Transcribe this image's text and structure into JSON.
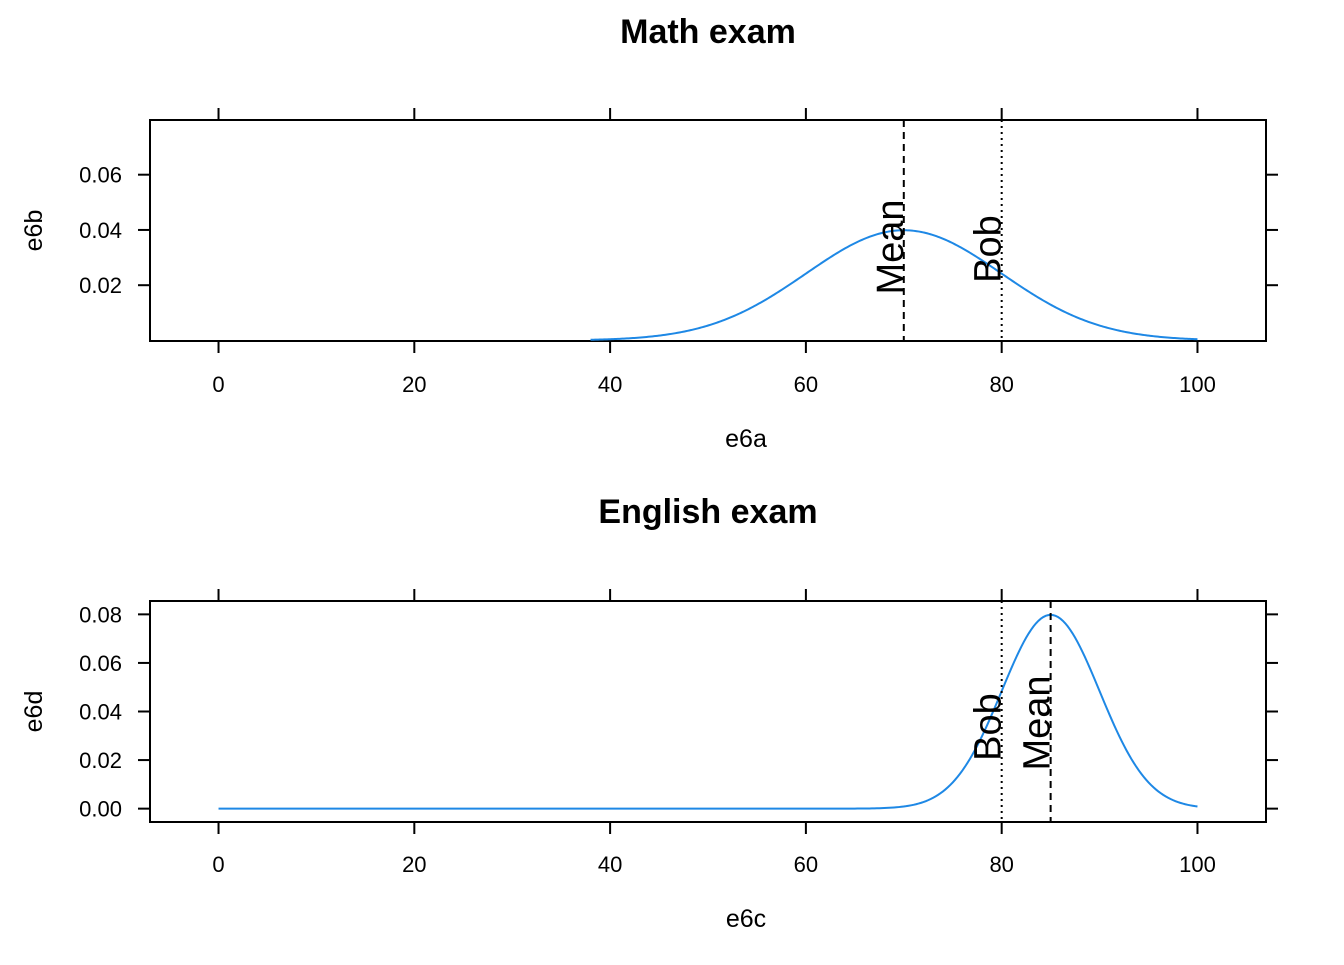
{
  "chart_data": [
    {
      "type": "line",
      "title": "Math exam",
      "xlabel": "e6a",
      "ylabel": "e6b",
      "xlim": [
        -7,
        107
      ],
      "ylim": [
        -0.0002,
        0.0798
      ],
      "xticks": [
        0,
        20,
        40,
        60,
        80,
        100
      ],
      "xtick_labels": [
        "0",
        "20",
        "40",
        "60",
        "80",
        "100"
      ],
      "yticks": [
        0.02,
        0.04,
        0.06
      ],
      "ytick_labels": [
        "0.02",
        "0.04",
        "0.06"
      ],
      "series": [
        {
          "color": "#1e88e5",
          "distribution": "normal",
          "mean": 70,
          "sd": 10,
          "x_range": [
            38,
            100
          ]
        }
      ],
      "annotations": [
        {
          "label": "Mean",
          "x": 70,
          "line_style": "dashed"
        },
        {
          "label": "Bob",
          "x": 80,
          "line_style": "dotted"
        }
      ],
      "grid": false
    },
    {
      "type": "line",
      "title": "English exam",
      "xlabel": "e6c",
      "ylabel": "e6d",
      "xlim": [
        -7,
        107
      ],
      "ylim": [
        -0.0055,
        0.0855
      ],
      "xticks": [
        0,
        20,
        40,
        60,
        80,
        100
      ],
      "xtick_labels": [
        "0",
        "20",
        "40",
        "60",
        "80",
        "100"
      ],
      "yticks": [
        0.0,
        0.02,
        0.04,
        0.06,
        0.08
      ],
      "ytick_labels": [
        "0.00",
        "0.02",
        "0.04",
        "0.06",
        "0.08"
      ],
      "series": [
        {
          "color": "#1e88e5",
          "distribution": "normal",
          "mean": 85,
          "sd": 5,
          "x_range": [
            0,
            100
          ]
        }
      ],
      "annotations": [
        {
          "label": "Bob",
          "x": 80,
          "line_style": "dotted"
        },
        {
          "label": "Mean",
          "x": 85,
          "line_style": "dashed"
        }
      ],
      "grid": false
    }
  ]
}
